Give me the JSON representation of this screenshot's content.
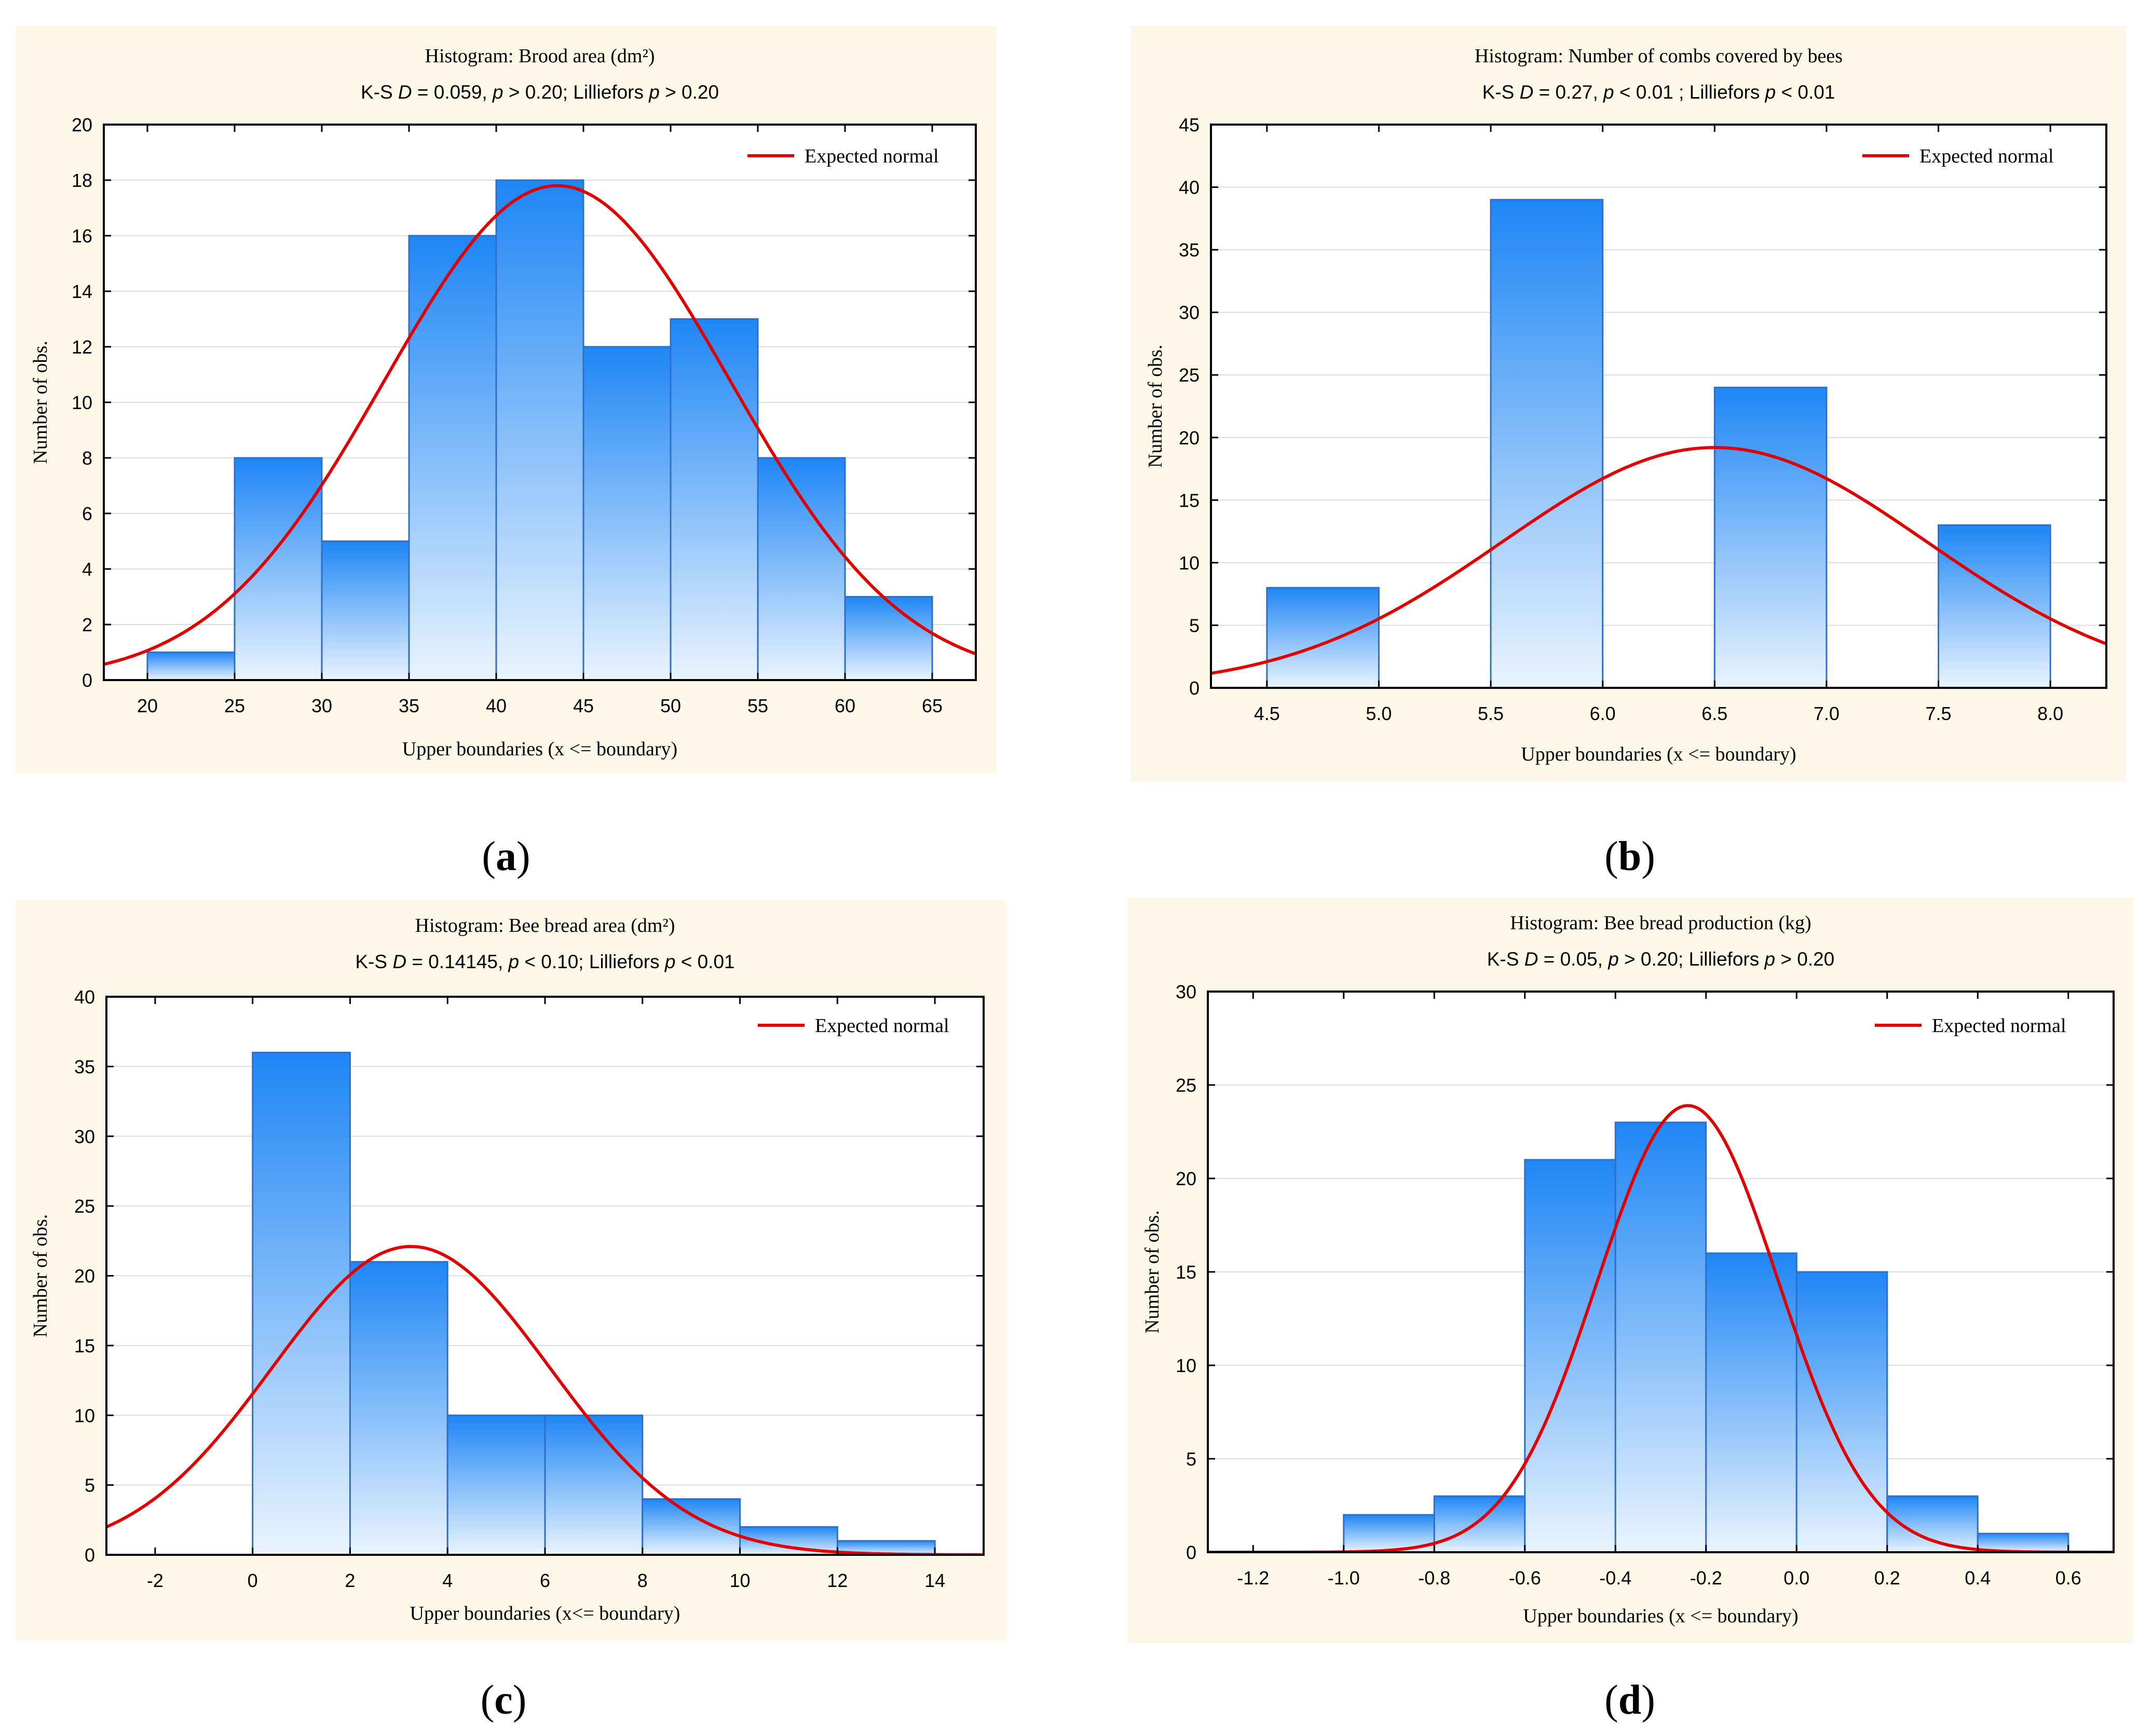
{
  "legend_label": "Expected normal",
  "ylabel": "Number of obs.",
  "colors": {
    "curve": "#e00000",
    "bar_top": "#1e86f5",
    "bar_bottom": "#eaf4fe",
    "panel_bg": "#fdf7e7",
    "grid": "#dcdcdc"
  },
  "chart_data": [
    {
      "id": "a",
      "type": "bar",
      "title": "Histogram: Brood area (dm²)",
      "subtitle": "K-S D = 0.059, p > 0.20; Lilliefors p > 0.20",
      "xlabel": "Upper boundaries (x <= boundary)",
      "ylabel": "Number of obs.",
      "xlim": [
        17.5,
        67.5
      ],
      "ylim": [
        0,
        20
      ],
      "xticks": [
        20,
        25,
        30,
        35,
        40,
        45,
        50,
        55,
        60,
        65
      ],
      "yticks": [
        0,
        2,
        4,
        6,
        8,
        10,
        12,
        14,
        16,
        18,
        20
      ],
      "bin_edges": [
        20,
        25,
        30,
        35,
        40,
        45,
        50,
        55,
        60,
        65
      ],
      "values": [
        1,
        8,
        5,
        16,
        18,
        12,
        13,
        8,
        3
      ],
      "normal": {
        "mean": 43.5,
        "sd": 9.9,
        "peak": 17.8
      },
      "legend": "Expected normal",
      "caption": "a"
    },
    {
      "id": "b",
      "type": "bar",
      "title": "Histogram: Number of combs covered by bees",
      "subtitle": "K-S D = 0.27, p < 0.01 ; Lilliefors p < 0.01",
      "xlabel": "Upper boundaries (x <= boundary)",
      "ylabel": "Number of obs.",
      "xlim": [
        4.25,
        8.25
      ],
      "ylim": [
        0,
        45
      ],
      "xticks": [
        4.5,
        5.0,
        5.5,
        6.0,
        6.5,
        7.0,
        7.5,
        8.0
      ],
      "yticks": [
        0,
        5,
        10,
        15,
        20,
        25,
        30,
        35,
        40,
        45
      ],
      "bin_edges": [
        4.5,
        5.0,
        5.5,
        6.0,
        6.5,
        7.0,
        7.5,
        8.0
      ],
      "values": [
        8,
        0,
        39,
        0,
        24,
        0,
        13
      ],
      "normal": {
        "mean": 6.5,
        "sd": 0.95,
        "peak": 19.2
      },
      "legend": "Expected normal",
      "caption": "b"
    },
    {
      "id": "c",
      "type": "bar",
      "title": "Histogram: Bee bread area (dm²)",
      "subtitle": "K-S D = 0.14145, p < 0.10; Lilliefors p < 0.01",
      "xlabel": "Upper boundaries (x<= boundary)",
      "ylabel": "Number of obs.",
      "xlim": [
        -3,
        15
      ],
      "ylim": [
        0,
        40
      ],
      "xticks": [
        -2,
        0,
        2,
        4,
        6,
        8,
        10,
        12,
        14
      ],
      "yticks": [
        0,
        5,
        10,
        15,
        20,
        25,
        30,
        35,
        40
      ],
      "bin_edges": [
        0,
        2,
        4,
        6,
        8,
        10,
        12,
        14
      ],
      "values": [
        36,
        21,
        10,
        10,
        4,
        2,
        1
      ],
      "normal": {
        "mean": 3.25,
        "sd": 2.85,
        "peak": 22.1
      },
      "legend": "Expected normal",
      "caption": "c"
    },
    {
      "id": "d",
      "type": "bar",
      "title": "Histogram: Bee bread production (kg)",
      "subtitle": "K-S D = 0.05, p > 0.20; Lilliefors p > 0.20",
      "xlabel": "Upper boundaries (x <= boundary)",
      "ylabel": "Number of obs.",
      "xlim": [
        -1.3,
        0.7
      ],
      "ylim": [
        0,
        30
      ],
      "xticks": [
        -1.2,
        -1.0,
        -0.8,
        -0.6,
        -0.4,
        -0.2,
        0.0,
        0.2,
        0.4,
        0.6
      ],
      "yticks": [
        0,
        5,
        10,
        15,
        20,
        25,
        30
      ],
      "bin_edges": [
        -1.0,
        -0.8,
        -0.6,
        -0.4,
        -0.2,
        0.0,
        0.2,
        0.4,
        0.6
      ],
      "values": [
        2,
        3,
        21,
        23,
        16,
        15,
        3,
        1
      ],
      "normal": {
        "mean": -0.24,
        "sd": 0.2,
        "peak": 23.9
      },
      "legend": "Expected normal",
      "caption": "d"
    }
  ]
}
